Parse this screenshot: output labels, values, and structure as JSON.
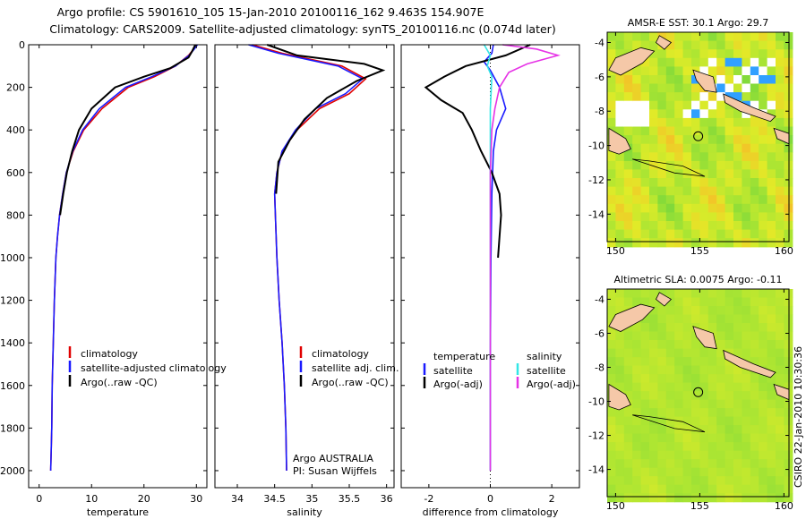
{
  "header": {
    "line1": "Argo profile: CS 5901610_105 15-Jan-2010 20100116_162 9.463S 154.907E",
    "line2": "Climatology: CARS2009. Satellite-adjusted climatology: synTS_20100116.nc (0.074d later)"
  },
  "stamp": "CSIRO 22-Jan-2010 10:30:36",
  "colors": {
    "red": "#e00000",
    "blue": "#1a1aff",
    "black": "#000000",
    "cyan": "#33e6e6",
    "magenta": "#e633e6"
  },
  "chart_data": [
    {
      "type": "line",
      "id": "temperature",
      "xlabel": "temperature",
      "xlim": [
        -2,
        32
      ],
      "xticks": [
        0,
        10,
        20,
        30
      ],
      "ylim": [
        2080,
        0
      ],
      "yticks": [
        0,
        200,
        400,
        600,
        800,
        1000,
        1200,
        1400,
        1600,
        1800,
        2000
      ],
      "legend": [
        "climatology",
        "satellite-adjusted climatology",
        "Argo(..raw -QC)"
      ],
      "series": [
        {
          "name": "climatology",
          "color": "red",
          "x": [
            30,
            29.5,
            28.5,
            26,
            22,
            17,
            12,
            8.5,
            6.5,
            5.2,
            4.5,
            3.9,
            3.5,
            3.2,
            2.9,
            2.7,
            2.5,
            2.4,
            2.3,
            2.2
          ],
          "y": [
            0,
            20,
            50,
            100,
            150,
            200,
            300,
            400,
            500,
            600,
            700,
            800,
            900,
            1000,
            1200,
            1400,
            1600,
            1800,
            1900,
            2000
          ]
        },
        {
          "name": "satellite-adjusted climatology",
          "color": "blue",
          "x": [
            30.2,
            29.6,
            28.6,
            26,
            21.5,
            16.5,
            11.5,
            8.3,
            6.4,
            5.2,
            4.5,
            3.9,
            3.5,
            3.2,
            2.9,
            2.7,
            2.5,
            2.4,
            2.3,
            2.2
          ],
          "y": [
            0,
            20,
            50,
            100,
            150,
            200,
            300,
            400,
            500,
            600,
            700,
            800,
            900,
            1000,
            1200,
            1400,
            1600,
            1800,
            1900,
            2000
          ]
        },
        {
          "name": "Argo(..raw -QC)",
          "color": "black",
          "x": [
            29.8,
            29.2,
            28.5,
            25,
            20,
            14.5,
            10,
            7.6,
            6.3,
            5.3,
            4.6,
            4.0
          ],
          "y": [
            0,
            30,
            60,
            110,
            150,
            200,
            300,
            400,
            500,
            600,
            700,
            800
          ]
        }
      ]
    },
    {
      "type": "line",
      "id": "salinity",
      "xlabel": "salinity",
      "xlim": [
        33.7,
        36.1
      ],
      "xticks": [
        34,
        34.5,
        35,
        35.5,
        36
      ],
      "ylim": [
        2080,
        0
      ],
      "legend": [
        "climatology",
        "satellite adj. clim.",
        "Argo(..raw -QC)"
      ],
      "annotation": [
        "Argo AUSTRALIA",
        "PI: Susan Wijffels"
      ],
      "series": [
        {
          "name": "climatology",
          "color": "red",
          "x": [
            34.2,
            34.6,
            35.4,
            35.72,
            35.5,
            35.1,
            34.8,
            34.6,
            34.53,
            34.5,
            34.51,
            34.53,
            34.56,
            34.6,
            34.63,
            34.65,
            34.66
          ],
          "y": [
            0,
            40,
            100,
            160,
            230,
            300,
            400,
            500,
            600,
            700,
            800,
            1000,
            1200,
            1400,
            1600,
            1800,
            2000
          ]
        },
        {
          "name": "satellite adj. clim.",
          "color": "blue",
          "x": [
            34.15,
            34.55,
            35.35,
            35.68,
            35.45,
            35.05,
            34.78,
            34.6,
            34.53,
            34.5,
            34.51,
            34.53,
            34.56,
            34.6,
            34.63,
            34.65,
            34.66
          ],
          "y": [
            0,
            40,
            100,
            160,
            230,
            300,
            400,
            500,
            600,
            700,
            800,
            1000,
            1200,
            1400,
            1600,
            1800,
            2000
          ]
        },
        {
          "name": "Argo(..raw -QC)",
          "color": "black",
          "x": [
            34.4,
            34.8,
            35.7,
            35.95,
            35.6,
            35.2,
            34.9,
            34.7,
            34.55,
            34.52
          ],
          "y": [
            0,
            50,
            90,
            120,
            170,
            250,
            350,
            450,
            550,
            700
          ]
        }
      ]
    },
    {
      "type": "line",
      "id": "difference",
      "xlabel": "difference from climatology",
      "xlim": [
        -2.9,
        2.9
      ],
      "xticks": [
        -2,
        0,
        2
      ],
      "ylim": [
        2080,
        0
      ],
      "legend": [
        {
          "group": "temperature",
          "items": [
            "satellite",
            "Argo(-adj)"
          ],
          "colors": [
            "blue",
            "black"
          ]
        },
        {
          "group": "salinity",
          "items": [
            "satellite",
            "Argo(-adj)"
          ],
          "colors": [
            "cyan",
            "magenta"
          ]
        }
      ],
      "series": [
        {
          "name": "temperature satellite",
          "color": "blue",
          "x": [
            0.1,
            0.05,
            -0.2,
            0.0,
            0.3,
            0.5,
            0.2,
            0.1,
            0.05,
            0.02,
            0.0,
            0.0
          ],
          "y": [
            0,
            40,
            80,
            120,
            200,
            300,
            400,
            500,
            700,
            1000,
            1500,
            2000
          ]
        },
        {
          "name": "temperature Argo(-adj)",
          "color": "black",
          "x": [
            1.3,
            0.5,
            -0.8,
            -1.5,
            -2.1,
            -1.6,
            -0.9,
            -0.6,
            -0.3,
            0.05,
            0.3,
            0.35,
            0.3,
            0.25
          ],
          "y": [
            0,
            50,
            100,
            150,
            200,
            260,
            320,
            400,
            500,
            600,
            700,
            800,
            900,
            1000
          ]
        },
        {
          "name": "salinity satellite",
          "color": "cyan",
          "x": [
            -0.2,
            0.0,
            -0.1,
            0.05,
            0.0,
            0.0,
            0.0,
            0.0,
            0.0
          ],
          "y": [
            0,
            50,
            100,
            150,
            300,
            500,
            1000,
            1500,
            2000
          ]
        },
        {
          "name": "salinity Argo(-adj)",
          "color": "magenta",
          "x": [
            0.4,
            1.5,
            2.2,
            1.2,
            0.6,
            0.3,
            0.15,
            0.05,
            0.0,
            0.0,
            0.0
          ],
          "y": [
            0,
            20,
            50,
            90,
            130,
            200,
            300,
            400,
            600,
            1000,
            2000
          ]
        }
      ]
    },
    {
      "type": "heatmap",
      "id": "sst",
      "title": "AMSR-E SST: 30.1 Argo: 29.7",
      "xlim": [
        149.5,
        160.3
      ],
      "xticks": [
        150,
        155,
        160
      ],
      "ylim": [
        -15.6,
        -3.4
      ],
      "yticks": [
        -4,
        -6,
        -8,
        -10,
        -12,
        -14
      ],
      "marker": {
        "lon": 154.907,
        "lat": -9.463
      }
    },
    {
      "type": "heatmap",
      "id": "sla",
      "title": "Altimetric SLA: 0.0075 Argo: -0.11",
      "xlim": [
        149.5,
        160.3
      ],
      "xticks": [
        150,
        155,
        160
      ],
      "ylim": [
        -15.6,
        -3.4
      ],
      "yticks": [
        -4,
        -6,
        -8,
        -10,
        -12,
        -14
      ],
      "marker": {
        "lon": 154.907,
        "lat": -9.463
      }
    }
  ]
}
